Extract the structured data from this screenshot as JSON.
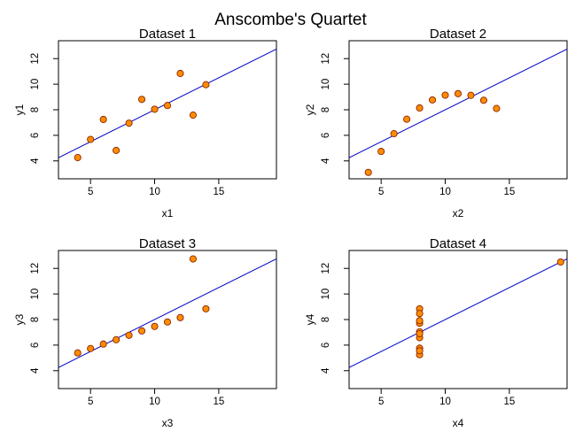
{
  "title": "Anscombe's Quartet",
  "colors": {
    "point_fill": "#ff8c00",
    "point_stroke": "#8b2500",
    "fit_line": "#0000cd",
    "axes": "#000000",
    "background": "#ffffff"
  },
  "chart_data": [
    {
      "type": "scatter",
      "title": "Dataset 1",
      "xlabel": "x1",
      "ylabel": "y1",
      "xlim": [
        2.5,
        19.5
      ],
      "ylim": [
        2.6,
        13.4
      ],
      "xticks": [
        5,
        10,
        15
      ],
      "yticks": [
        4,
        6,
        8,
        10,
        12
      ],
      "x": [
        10,
        8,
        13,
        9,
        11,
        14,
        6,
        4,
        12,
        7,
        5
      ],
      "y": [
        8.04,
        6.95,
        7.58,
        8.81,
        8.33,
        9.96,
        7.24,
        4.26,
        10.84,
        4.82,
        5.68
      ],
      "fit": {
        "intercept": 3.0,
        "slope": 0.5
      }
    },
    {
      "type": "scatter",
      "title": "Dataset 2",
      "xlabel": "x2",
      "ylabel": "y2",
      "xlim": [
        2.5,
        19.5
      ],
      "ylim": [
        2.6,
        13.4
      ],
      "xticks": [
        5,
        10,
        15
      ],
      "yticks": [
        4,
        6,
        8,
        10,
        12
      ],
      "x": [
        10,
        8,
        13,
        9,
        11,
        14,
        6,
        4,
        12,
        7,
        5
      ],
      "y": [
        9.14,
        8.14,
        8.74,
        8.77,
        9.26,
        8.1,
        6.13,
        3.1,
        9.13,
        7.26,
        4.74
      ],
      "fit": {
        "intercept": 3.0,
        "slope": 0.5
      }
    },
    {
      "type": "scatter",
      "title": "Dataset 3",
      "xlabel": "x3",
      "ylabel": "y3",
      "xlim": [
        2.5,
        19.5
      ],
      "ylim": [
        2.6,
        13.4
      ],
      "xticks": [
        5,
        10,
        15
      ],
      "yticks": [
        4,
        6,
        8,
        10,
        12
      ],
      "x": [
        10,
        8,
        13,
        9,
        11,
        14,
        6,
        4,
        12,
        7,
        5
      ],
      "y": [
        7.46,
        6.77,
        12.74,
        7.11,
        7.81,
        8.84,
        6.08,
        5.39,
        8.15,
        6.42,
        5.73
      ],
      "fit": {
        "intercept": 3.0,
        "slope": 0.5
      }
    },
    {
      "type": "scatter",
      "title": "Dataset 4",
      "xlabel": "x4",
      "ylabel": "y4",
      "xlim": [
        2.5,
        19.5
      ],
      "ylim": [
        2.6,
        13.4
      ],
      "xticks": [
        5,
        10,
        15
      ],
      "yticks": [
        4,
        6,
        8,
        10,
        12
      ],
      "x": [
        8,
        8,
        8,
        8,
        8,
        8,
        8,
        19,
        8,
        8,
        8
      ],
      "y": [
        6.58,
        5.76,
        7.71,
        8.84,
        8.47,
        7.04,
        5.25,
        12.5,
        5.56,
        7.91,
        6.89
      ],
      "fit": {
        "intercept": 3.0,
        "slope": 0.5
      }
    }
  ]
}
